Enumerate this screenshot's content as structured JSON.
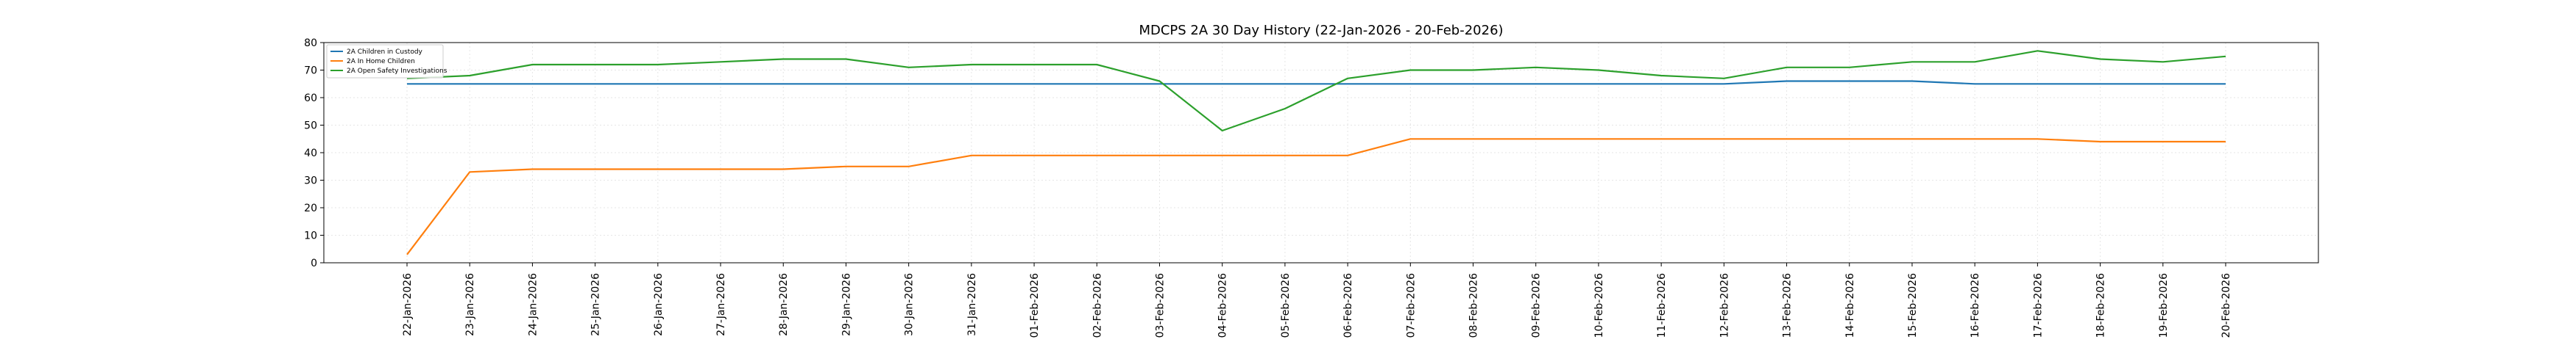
{
  "chart_data": {
    "type": "line",
    "title": "MDCPS 2A 30 Day History (22-Jan-2026 - 20-Feb-2026)",
    "xlabel": "",
    "ylabel": "",
    "categories": [
      "22-Jan-2026",
      "23-Jan-2026",
      "24-Jan-2026",
      "25-Jan-2026",
      "26-Jan-2026",
      "27-Jan-2026",
      "28-Jan-2026",
      "29-Jan-2026",
      "30-Jan-2026",
      "31-Jan-2026",
      "01-Feb-2026",
      "02-Feb-2026",
      "03-Feb-2026",
      "04-Feb-2026",
      "05-Feb-2026",
      "06-Feb-2026",
      "07-Feb-2026",
      "08-Feb-2026",
      "09-Feb-2026",
      "10-Feb-2026",
      "11-Feb-2026",
      "12-Feb-2026",
      "13-Feb-2026",
      "14-Feb-2026",
      "15-Feb-2026",
      "16-Feb-2026",
      "17-Feb-2026",
      "18-Feb-2026",
      "19-Feb-2026",
      "20-Feb-2026"
    ],
    "ylim": [
      0,
      80
    ],
    "yticks": [
      0,
      10,
      20,
      30,
      40,
      50,
      60,
      70,
      80
    ],
    "grid": true,
    "legend_position": "top-left",
    "series": [
      {
        "name": "2A Children in Custody",
        "color": "#1f77b4",
        "values": [
          65,
          65,
          65,
          65,
          65,
          65,
          65,
          65,
          65,
          65,
          65,
          65,
          65,
          65,
          65,
          65,
          65,
          65,
          65,
          65,
          65,
          65,
          66,
          66,
          66,
          65,
          65,
          65,
          65,
          65
        ]
      },
      {
        "name": "2A In Home Children",
        "color": "#ff7f0e",
        "values": [
          3,
          33,
          34,
          34,
          34,
          34,
          34,
          35,
          35,
          39,
          39,
          39,
          39,
          39,
          39,
          39,
          45,
          45,
          45,
          45,
          45,
          45,
          45,
          45,
          45,
          45,
          45,
          44,
          44,
          44
        ]
      },
      {
        "name": "2A Open Safety Investigations",
        "color": "#2ca02c",
        "values": [
          67,
          68,
          72,
          72,
          72,
          73,
          74,
          74,
          71,
          72,
          72,
          72,
          66,
          48,
          56,
          67,
          70,
          70,
          71,
          70,
          68,
          67,
          71,
          71,
          73,
          73,
          77,
          74,
          73,
          75
        ]
      }
    ]
  }
}
